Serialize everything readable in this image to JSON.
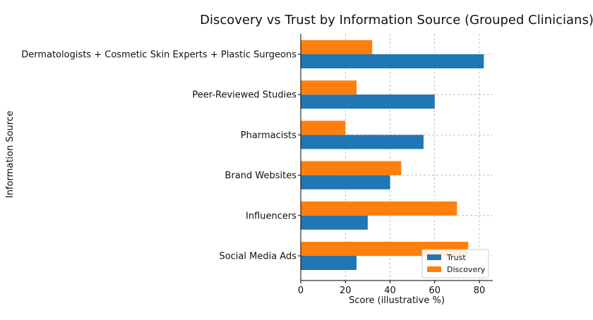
{
  "chart_data": {
    "type": "bar",
    "orientation": "horizontal",
    "title": "Discovery vs Trust by Information Source (Grouped Clinicians)",
    "xlabel": "Score (illustrative %)",
    "ylabel": "Information Source",
    "xlim": [
      0,
      86
    ],
    "xticks": [
      0,
      20,
      40,
      60,
      80
    ],
    "grid": true,
    "legend_position": "bottom-right",
    "categories": [
      "Dermatologists + Cosmetic Skin Experts + Plastic Surgeons",
      "Peer-Reviewed Studies",
      "Pharmacists",
      "Brand Websites",
      "Influencers",
      "Social Media Ads"
    ],
    "series": [
      {
        "name": "Trust",
        "color": "#1f77b4",
        "values": [
          82,
          60,
          55,
          40,
          30,
          25
        ]
      },
      {
        "name": "Discovery",
        "color": "#ff7f0e",
        "values": [
          32,
          25,
          20,
          45,
          70,
          75
        ]
      }
    ]
  }
}
